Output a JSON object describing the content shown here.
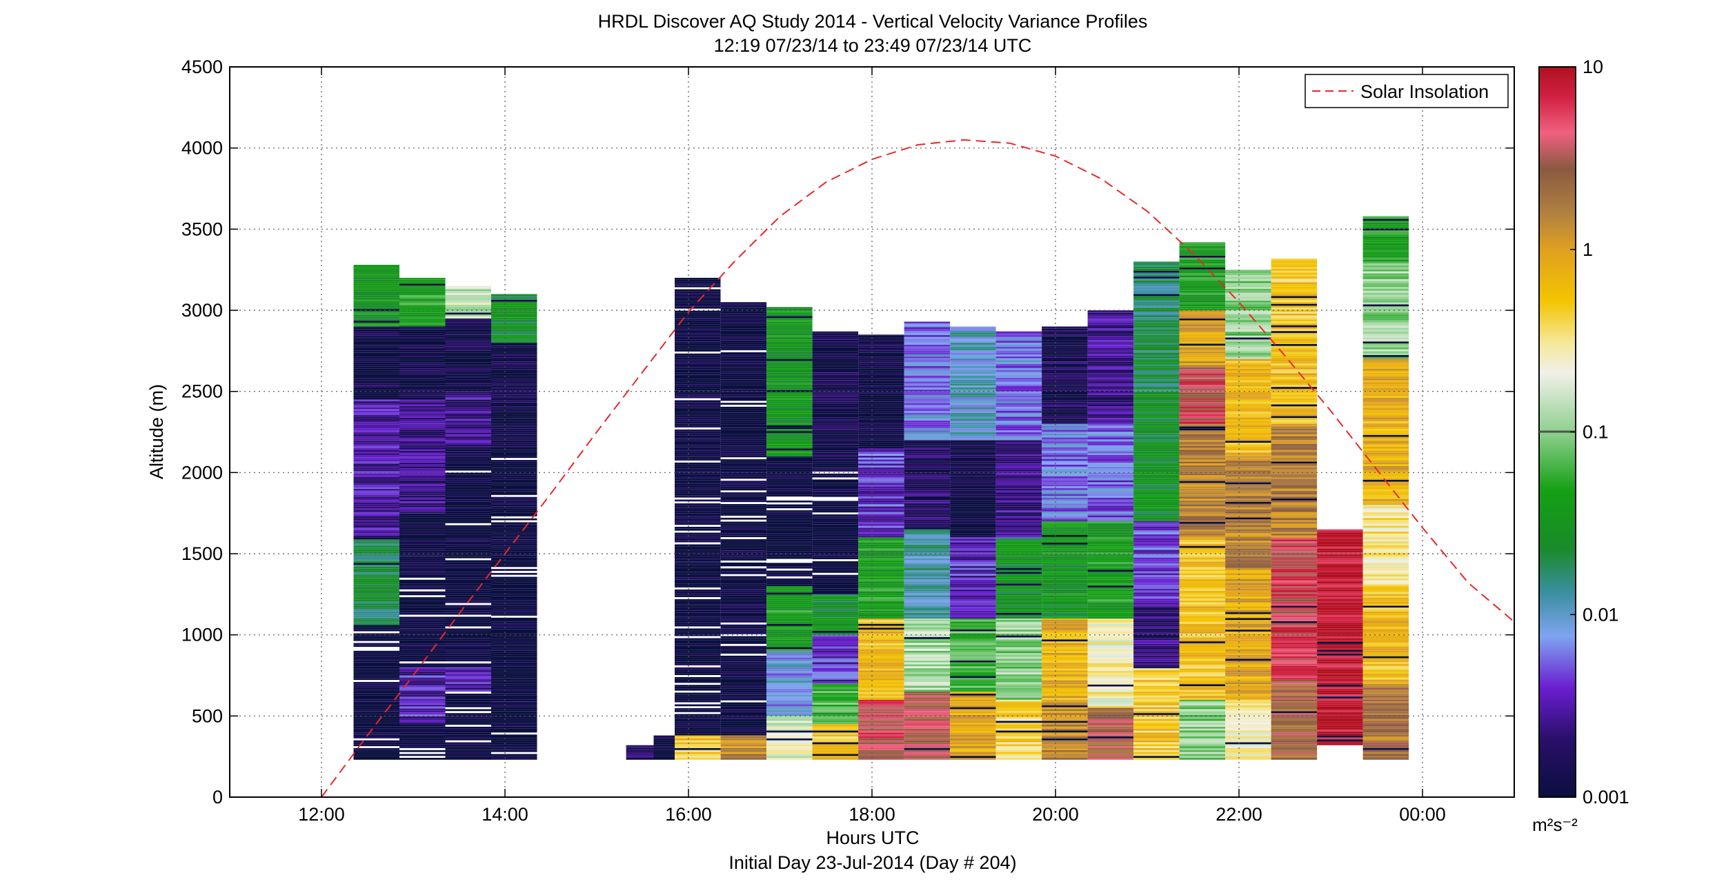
{
  "chart_data": {
    "type": "heatmap",
    "title": "HRDL Discover AQ Study 2014 - Vertical Velocity Variance Profiles",
    "subtitle": "12:19 07/23/14 to 23:49 07/23/14  UTC",
    "xlabel": "Hours UTC",
    "xlabel2": "Initial Day 23-Jul-2014 (Day # 204)",
    "ylabel": "Altitude (m)",
    "xlim_hours": [
      11,
      25
    ],
    "ylim": [
      0,
      4500
    ],
    "x_ticks": [
      {
        "hour": 12,
        "label": "12:00"
      },
      {
        "hour": 14,
        "label": "14:00"
      },
      {
        "hour": 16,
        "label": "16:00"
      },
      {
        "hour": 18,
        "label": "18:00"
      },
      {
        "hour": 20,
        "label": "20:00"
      },
      {
        "hour": 22,
        "label": "22:00"
      },
      {
        "hour": 24,
        "label": "00:00"
      }
    ],
    "y_ticks": [
      0,
      500,
      1000,
      1500,
      2000,
      2500,
      3000,
      3500,
      4000,
      4500
    ],
    "grid": true,
    "legend": {
      "position": "top-right",
      "entries": [
        {
          "label": "Solar Insolation",
          "color": "#e8282a",
          "style": "dashed"
        }
      ]
    },
    "colorbar": {
      "scale": "log",
      "range": [
        0.001,
        10
      ],
      "ticks": [
        {
          "value": 10,
          "label": "10"
        },
        {
          "value": 1,
          "label": "1"
        },
        {
          "value": 0.1,
          "label": "0.1"
        },
        {
          "value": 0.01,
          "label": "0.01"
        },
        {
          "value": 0.001,
          "label": "0.001"
        }
      ],
      "units": "m²s⁻²",
      "stops": [
        {
          "pos": 0.0,
          "color": "#0a0f3f"
        },
        {
          "pos": 0.08,
          "color": "#2a0f6a"
        },
        {
          "pos": 0.15,
          "color": "#6a1fd0"
        },
        {
          "pos": 0.22,
          "color": "#7fa4f0"
        },
        {
          "pos": 0.28,
          "color": "#3a8fa0"
        },
        {
          "pos": 0.34,
          "color": "#1a8a2a"
        },
        {
          "pos": 0.42,
          "color": "#14a014"
        },
        {
          "pos": 0.5,
          "color": "#8fd08f"
        },
        {
          "pos": 0.58,
          "color": "#f0f0e8"
        },
        {
          "pos": 0.62,
          "color": "#f5e9a0"
        },
        {
          "pos": 0.68,
          "color": "#f4c400"
        },
        {
          "pos": 0.75,
          "color": "#e0a020"
        },
        {
          "pos": 0.8,
          "color": "#b08040"
        },
        {
          "pos": 0.86,
          "color": "#8a5a40"
        },
        {
          "pos": 0.91,
          "color": "#f06080"
        },
        {
          "pos": 0.96,
          "color": "#d02040"
        },
        {
          "pos": 1.0,
          "color": "#b01020"
        }
      ]
    },
    "solar_insolation": {
      "hours": [
        12.0,
        12.5,
        13.0,
        13.5,
        14.0,
        14.5,
        15.0,
        15.5,
        16.0,
        16.5,
        17.0,
        17.5,
        18.0,
        18.5,
        19.0,
        19.5,
        20.0,
        20.5,
        21.0,
        21.5,
        22.0,
        22.5,
        23.0,
        23.5,
        24.0,
        24.5,
        25.0
      ],
      "altitude_equiv": [
        0,
        380,
        750,
        1130,
        1500,
        1870,
        2250,
        2620,
        2990,
        3300,
        3580,
        3790,
        3930,
        4020,
        4050,
        4030,
        3950,
        3810,
        3610,
        3350,
        3050,
        2720,
        2380,
        2020,
        1660,
        1320,
        1080
      ]
    },
    "profiles": [
      {
        "time": "12:35",
        "x0": 12.35,
        "x1": 12.85,
        "base": 230,
        "top": 3280,
        "bands": [
          [
            230,
            1060,
            0.0
          ],
          [
            1060,
            1600,
            0.33
          ],
          [
            1600,
            2450,
            0.12
          ],
          [
            2450,
            2900,
            0.02
          ],
          [
            2900,
            3280,
            0.38
          ]
        ]
      },
      {
        "time": "12:50",
        "x0": 12.85,
        "x1": 13.35,
        "base": 230,
        "top": 3200,
        "bands": [
          [
            230,
            450,
            0.0
          ],
          [
            450,
            800,
            0.14
          ],
          [
            800,
            1750,
            0.0
          ],
          [
            1750,
            2450,
            0.1
          ],
          [
            2450,
            2900,
            0.02
          ],
          [
            2900,
            3200,
            0.42
          ]
        ]
      },
      {
        "time": "13:20",
        "x0": 13.35,
        "x1": 13.85,
        "base": 230,
        "top": 3150,
        "bands": [
          [
            230,
            650,
            0.0
          ],
          [
            650,
            800,
            0.12
          ],
          [
            800,
            2150,
            0.0
          ],
          [
            2150,
            2500,
            0.11
          ],
          [
            2500,
            2950,
            0.02
          ],
          [
            2950,
            3150,
            0.55
          ]
        ]
      },
      {
        "time": "13:50",
        "x0": 13.85,
        "x1": 14.35,
        "base": 230,
        "top": 3100,
        "bands": [
          [
            230,
            2300,
            0.0
          ],
          [
            2300,
            2800,
            0.02
          ],
          [
            2800,
            3100,
            0.36
          ]
        ]
      },
      {
        "time": "15:15",
        "x0": 15.32,
        "x1": 15.62,
        "base": 230,
        "top": 320,
        "bands": [
          [
            230,
            320,
            0.07
          ]
        ]
      },
      {
        "time": "15:50",
        "x0": 15.62,
        "x1": 15.85,
        "base": 230,
        "top": 380,
        "bands": [
          [
            230,
            380,
            0.0
          ]
        ]
      },
      {
        "time": "16:00",
        "x0": 15.85,
        "x1": 16.35,
        "base": 230,
        "top": 3200,
        "bands": [
          [
            230,
            380,
            0.68
          ],
          [
            380,
            1450,
            0.0
          ],
          [
            1450,
            3200,
            0.0
          ]
        ]
      },
      {
        "time": "16:25",
        "x0": 16.35,
        "x1": 16.85,
        "base": 230,
        "top": 3050,
        "bands": [
          [
            230,
            380,
            0.78
          ],
          [
            380,
            1350,
            0.0
          ],
          [
            1350,
            3050,
            0.0
          ]
        ]
      },
      {
        "time": "17:00",
        "x0": 16.85,
        "x1": 17.35,
        "base": 230,
        "top": 3020,
        "bands": [
          [
            230,
            500,
            0.57
          ],
          [
            500,
            900,
            0.22
          ],
          [
            900,
            1300,
            0.4
          ],
          [
            1300,
            2100,
            0.0
          ],
          [
            2100,
            3020,
            0.38
          ]
        ]
      },
      {
        "time": "17:25",
        "x0": 17.35,
        "x1": 17.85,
        "base": 230,
        "top": 2870,
        "bands": [
          [
            230,
            450,
            0.68
          ],
          [
            450,
            700,
            0.44
          ],
          [
            700,
            1000,
            0.15
          ],
          [
            1000,
            1250,
            0.36
          ],
          [
            1250,
            2100,
            0.0
          ],
          [
            2100,
            2870,
            0.03
          ]
        ]
      },
      {
        "time": "17:55",
        "x0": 17.85,
        "x1": 18.35,
        "base": 230,
        "top": 2850,
        "bands": [
          [
            230,
            600,
            0.9
          ],
          [
            600,
            1100,
            0.7
          ],
          [
            1100,
            1600,
            0.4
          ],
          [
            1600,
            2150,
            0.16
          ],
          [
            2150,
            2850,
            0.01
          ]
        ]
      },
      {
        "time": "18:20",
        "x0": 18.35,
        "x1": 18.85,
        "base": 230,
        "top": 2930,
        "bands": [
          [
            230,
            650,
            0.88
          ],
          [
            650,
            1100,
            0.52
          ],
          [
            1100,
            1650,
            0.28
          ],
          [
            1650,
            2200,
            0.06
          ],
          [
            2200,
            2930,
            0.2
          ]
        ]
      },
      {
        "time": "18:50",
        "x0": 18.85,
        "x1": 19.35,
        "base": 230,
        "top": 2900,
        "bands": [
          [
            230,
            650,
            0.74
          ],
          [
            650,
            1100,
            0.45
          ],
          [
            1100,
            1600,
            0.14
          ],
          [
            1600,
            2200,
            0.02
          ],
          [
            2200,
            2900,
            0.25
          ]
        ]
      },
      {
        "time": "19:20",
        "x0": 19.35,
        "x1": 19.85,
        "base": 230,
        "top": 2870,
        "bands": [
          [
            230,
            600,
            0.65
          ],
          [
            600,
            1100,
            0.5
          ],
          [
            1100,
            1600,
            0.36
          ],
          [
            1600,
            2200,
            0.1
          ],
          [
            2200,
            2870,
            0.2
          ]
        ]
      },
      {
        "time": "19:50",
        "x0": 19.85,
        "x1": 20.35,
        "base": 230,
        "top": 2900,
        "bands": [
          [
            230,
            600,
            0.78
          ],
          [
            600,
            1100,
            0.72
          ],
          [
            1100,
            1700,
            0.38
          ],
          [
            1700,
            2300,
            0.2
          ],
          [
            2300,
            2900,
            0.05
          ]
        ]
      },
      {
        "time": "20:20",
        "x0": 20.35,
        "x1": 20.85,
        "base": 230,
        "top": 3000,
        "bands": [
          [
            230,
            550,
            0.86
          ],
          [
            550,
            1100,
            0.6
          ],
          [
            1100,
            1700,
            0.4
          ],
          [
            1700,
            2300,
            0.18
          ],
          [
            2300,
            3000,
            0.1
          ]
        ]
      },
      {
        "time": "20:50",
        "x0": 20.85,
        "x1": 21.35,
        "base": 230,
        "top": 3300,
        "bands": [
          [
            230,
            800,
            0.68
          ],
          [
            800,
            1200,
            0.08
          ],
          [
            1200,
            1700,
            0.16
          ],
          [
            1700,
            2500,
            0.36
          ],
          [
            2500,
            3300,
            0.32
          ]
        ]
      },
      {
        "time": "21:20",
        "x0": 21.35,
        "x1": 21.85,
        "base": 230,
        "top": 3420,
        "bands": [
          [
            230,
            600,
            0.5
          ],
          [
            600,
            1600,
            0.69
          ],
          [
            1600,
            2300,
            0.8
          ],
          [
            2300,
            2650,
            0.91
          ],
          [
            2650,
            3000,
            0.74
          ],
          [
            3000,
            3420,
            0.4
          ]
        ]
      },
      {
        "time": "21:50",
        "x0": 21.85,
        "x1": 22.35,
        "base": 230,
        "top": 3250,
        "bands": [
          [
            230,
            600,
            0.6
          ],
          [
            600,
            1400,
            0.73
          ],
          [
            1400,
            2100,
            0.8
          ],
          [
            2100,
            2700,
            0.7
          ],
          [
            2700,
            3250,
            0.5
          ]
        ]
      },
      {
        "time": "22:20",
        "x0": 22.35,
        "x1": 22.85,
        "base": 230,
        "top": 3320,
        "bands": [
          [
            230,
            700,
            0.84
          ],
          [
            700,
            1600,
            0.92
          ],
          [
            1600,
            2300,
            0.8
          ],
          [
            2300,
            2800,
            0.7
          ],
          [
            2800,
            3320,
            0.68
          ]
        ]
      },
      {
        "time": "22:50",
        "x0": 22.85,
        "x1": 23.35,
        "base": 320,
        "top": 1650,
        "bands": [
          [
            320,
            1650,
            0.99
          ]
        ]
      },
      {
        "time": "23:30",
        "x0": 23.35,
        "x1": 23.85,
        "base": 230,
        "top": 3580,
        "bands": [
          [
            230,
            700,
            0.82
          ],
          [
            700,
            1300,
            0.7
          ],
          [
            1300,
            1800,
            0.62
          ],
          [
            1800,
            2700,
            0.72
          ],
          [
            2700,
            3300,
            0.5
          ],
          [
            3300,
            3580,
            0.4
          ]
        ]
      }
    ]
  }
}
